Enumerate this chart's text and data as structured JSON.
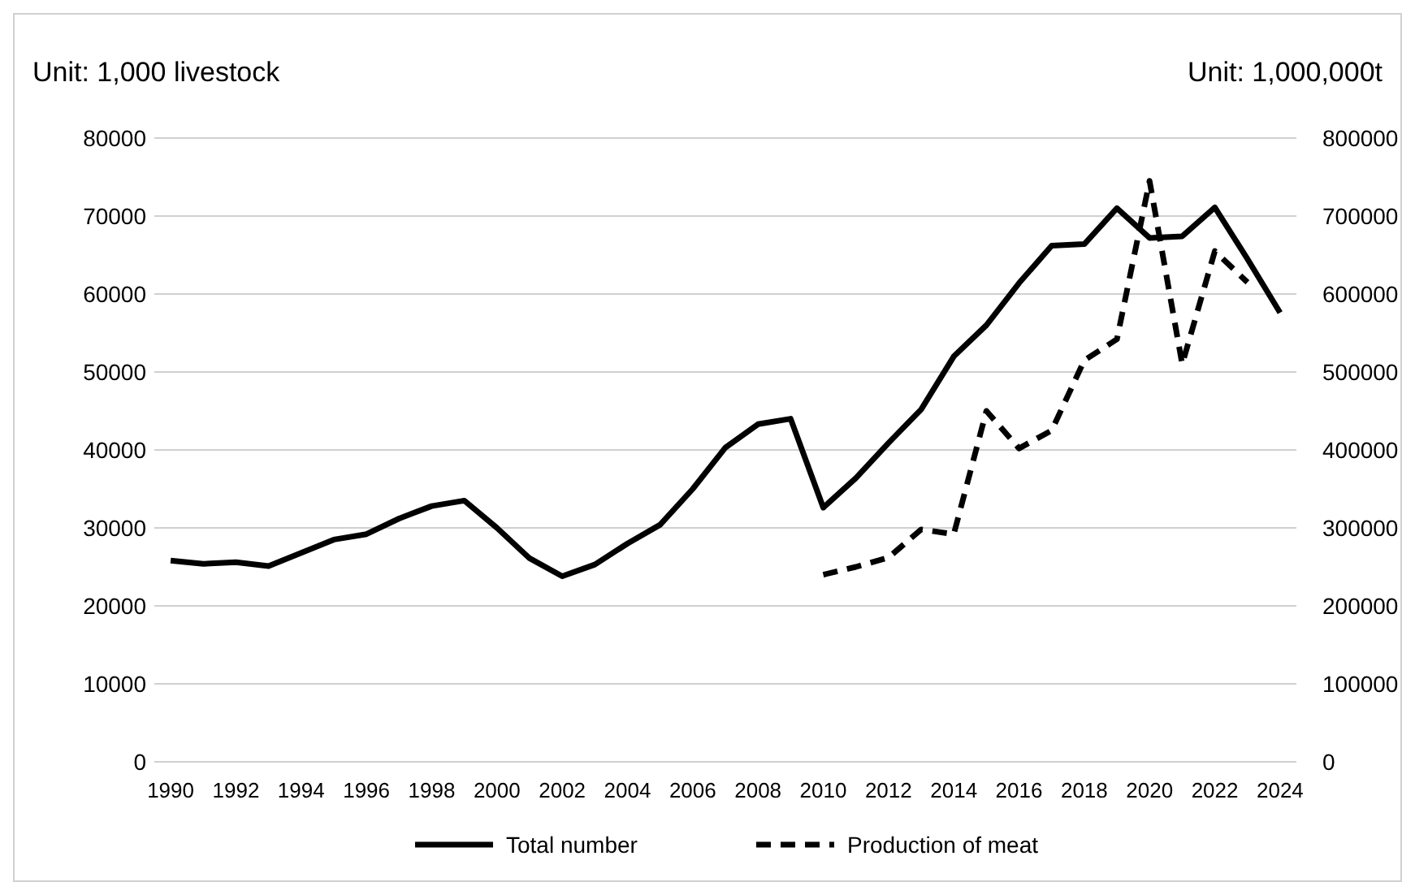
{
  "chart_data": {
    "type": "line",
    "ylabel": "Unit: 1,000 livestock",
    "y2label": "Unit: 1,000,000t",
    "categories": [
      "1990",
      null,
      "1992",
      null,
      "1994",
      null,
      "1996",
      null,
      "1998",
      null,
      "2000",
      null,
      "2002",
      null,
      "2004",
      null,
      "2006",
      null,
      "2008",
      null,
      "2010",
      null,
      "2012",
      null,
      "2014",
      null,
      "2016",
      null,
      "2018",
      null,
      "2020",
      null,
      "2022",
      null,
      "2024"
    ],
    "series": [
      {
        "name": "Total number",
        "color": "#000000",
        "line_style": "solid",
        "values": [
          25800,
          25400,
          25600,
          25100,
          26800,
          28500,
          29200,
          31200,
          32800,
          33500,
          30000,
          26100,
          23800,
          25300,
          28000,
          30400,
          35000,
          40300,
          43300,
          44000,
          32600,
          36400,
          40900,
          45200,
          52000,
          56000,
          61400,
          66200,
          66400,
          71000,
          67200,
          67400,
          71100,
          64500,
          57600
        ]
      },
      {
        "name": "Production of meat",
        "color": "#000000",
        "line_style": "dashed",
        "axis": "y2",
        "values": [
          null,
          null,
          null,
          null,
          null,
          null,
          null,
          null,
          null,
          null,
          null,
          null,
          null,
          null,
          null,
          null,
          null,
          null,
          null,
          null,
          240000,
          250000,
          262000,
          298000,
          292000,
          450000,
          402000,
          425000,
          515000,
          542000,
          745000,
          510000,
          655000,
          615000,
          null
        ]
      }
    ],
    "ylim": [
      0,
      80000
    ],
    "yticks": [
      0,
      10000,
      20000,
      30000,
      40000,
      50000,
      60000,
      70000,
      80000
    ],
    "y2lim": [
      0,
      800000
    ],
    "y2ticks": [
      0,
      100000,
      200000,
      300000,
      400000,
      500000,
      600000,
      700000,
      800000
    ],
    "grid": "y",
    "legend": "bottom",
    "marker": "none"
  }
}
